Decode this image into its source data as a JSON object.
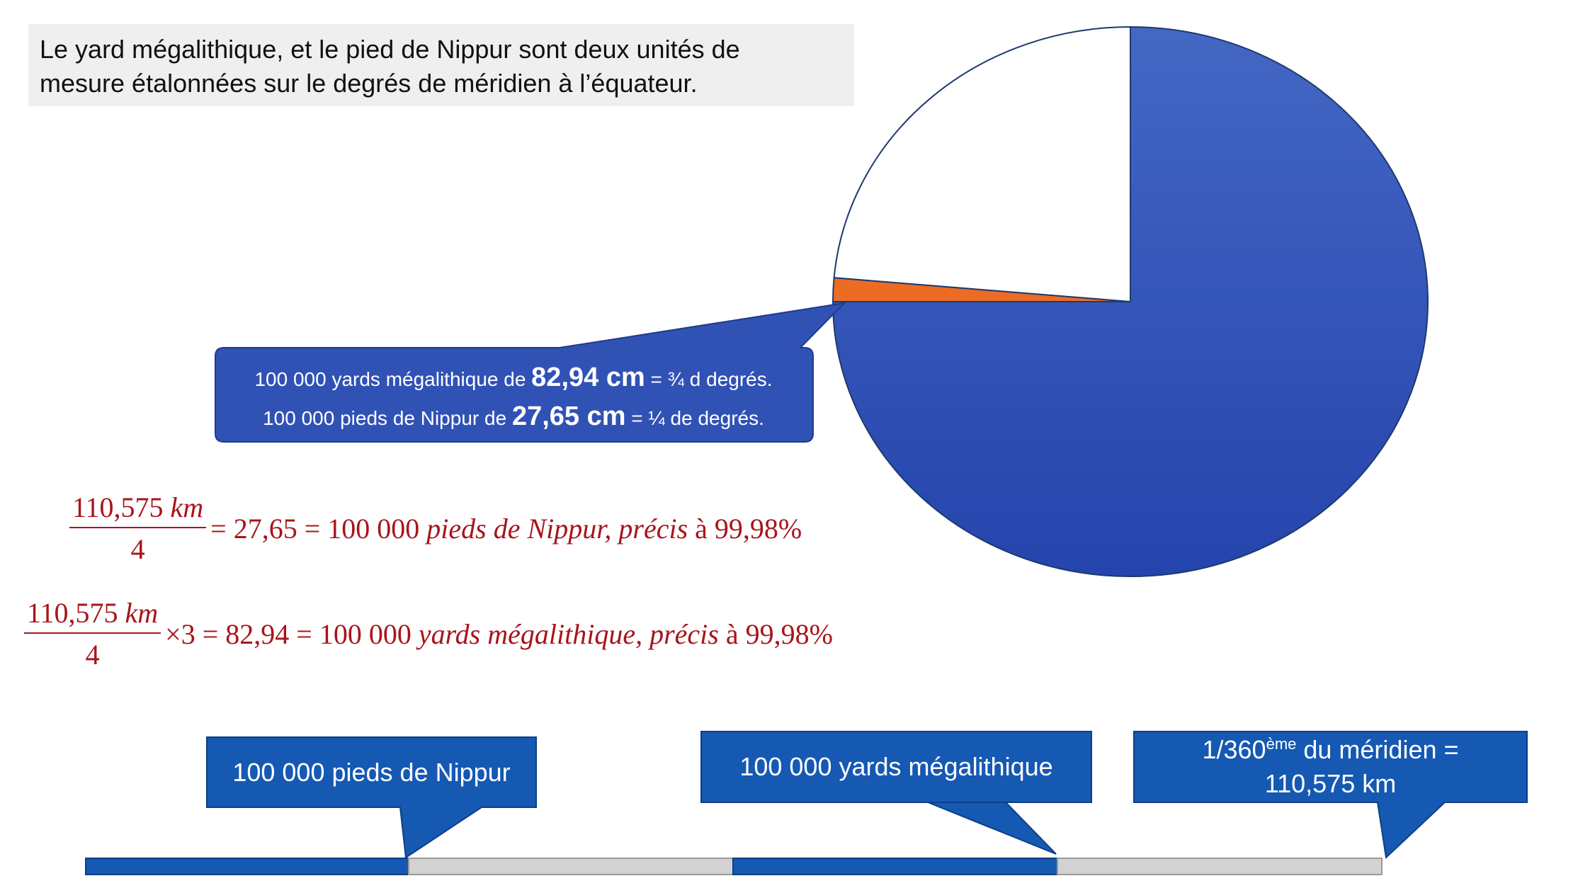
{
  "intro": {
    "line1": "Le yard mégalithique, et le pied de Nippur sont deux unités de",
    "line2": "mesure étalonnées sur le degrés de méridien à l’équateur."
  },
  "pie": {
    "slices": [
      {
        "value": 0.75,
        "color": "#3152b5"
      },
      {
        "value": 0.0139,
        "color": "#ec6c24"
      },
      {
        "value": 0.2361,
        "color": "#ffffff"
      }
    ]
  },
  "callout": {
    "line1_pre": "100 000 yards mégalithique de ",
    "line1_bold": "82,94 cm",
    "line1_post": " = ¾ d degrés.",
    "line2_pre": "100 000 pieds de Nippur de ",
    "line2_bold": "27,65 cm",
    "line2_post": " = ¼ de degrés."
  },
  "equation1": {
    "numerator": "110,575 ",
    "numerator_unit": "km",
    "denominator": "4",
    "result": "= 27,65 = 100 000 ",
    "phrase": "pieds de Nippur, précis",
    "tail": " à 99,98%"
  },
  "equation2": {
    "numerator": "110,575 ",
    "numerator_unit": "km",
    "denominator": "4",
    "result": "×3 = 82,94 = 100 000 ",
    "phrase": "yards mégalithique, précis",
    "tail": " à 99,98%"
  },
  "bar": {
    "labels": {
      "nippur": "100 000 pieds de Nippur",
      "yards": "100 000 yards mégalithique",
      "meridian_pre": "1/360",
      "meridian_sup": "ème",
      "meridian_post": " du méridien =",
      "meridian_line2": "110,575 km"
    },
    "colors": {
      "blue": "#1559b3",
      "gray": "#d2d2d2"
    }
  }
}
